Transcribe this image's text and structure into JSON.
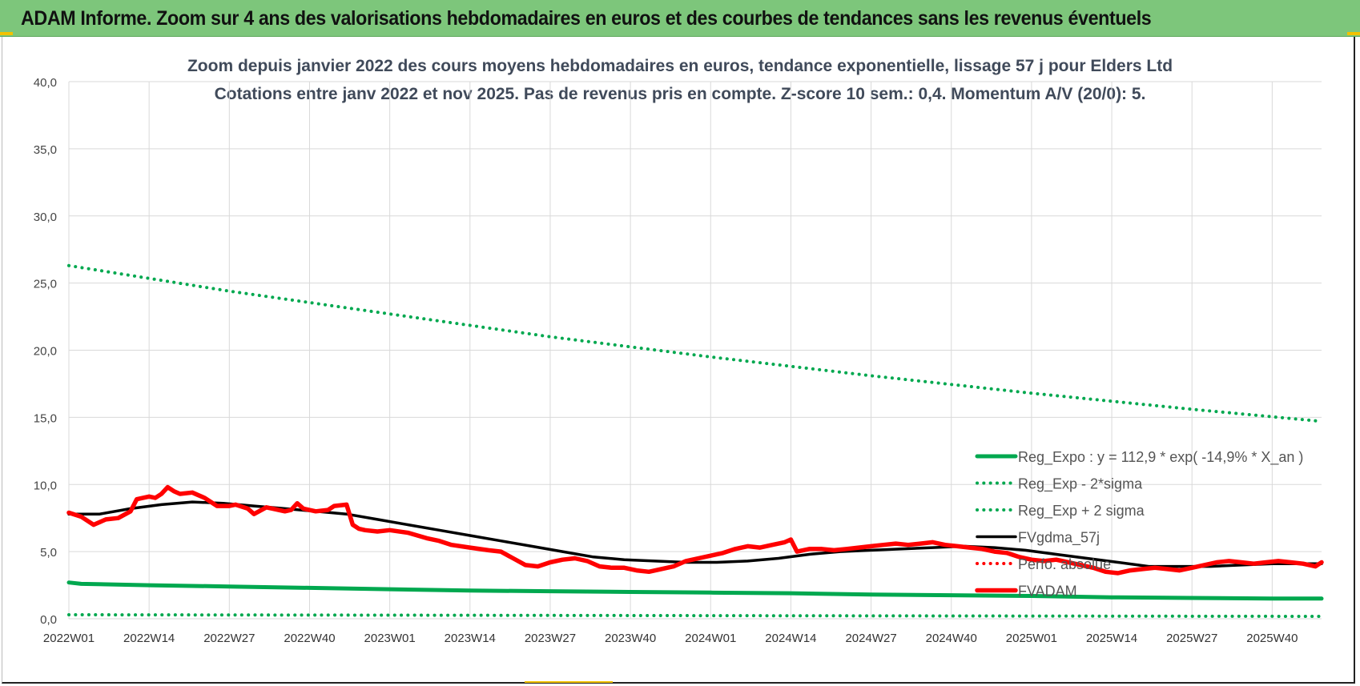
{
  "banner": {
    "title": "ADAM Informe. Zoom sur 4 ans des valorisations hebdomadaires en euros et des courbes de tendances sans les revenus éventuels"
  },
  "colors": {
    "banner_bg": "#7dc67b",
    "reg_expo": "#00a84f",
    "fvgdma": "#000000",
    "fvadam": "#ff0000",
    "perfo": "#ff0000",
    "grid": "#d9d9d9"
  },
  "chart_data": {
    "type": "line",
    "title_line1": "Zoom depuis janvier 2022 des cours moyens hebdomadaires en euros, tendance exponentielle, lissage 57 j pour Elders Ltd",
    "title_line2": "Cotations entre janv 2022 et nov 2025. Pas de revenus pris en compte. Z-score 10 sem.: 0,4. Momentum A/V (20/0): 5.",
    "xlabel": "",
    "ylabel": "",
    "ylim": [
      0,
      40
    ],
    "yticks": [
      "0,0",
      "5,0",
      "10,0",
      "15,0",
      "20,0",
      "25,0",
      "30,0",
      "35,0",
      "40,0"
    ],
    "ytick_values": [
      0,
      5,
      10,
      15,
      20,
      25,
      30,
      35,
      40
    ],
    "xlim": [
      0,
      203
    ],
    "xticks": [
      "2022W01",
      "2022W14",
      "2022W27",
      "2022W40",
      "2023W01",
      "2023W14",
      "2023W27",
      "2023W40",
      "2024W01",
      "2024W14",
      "2024W27",
      "2024W40",
      "2025W01",
      "2025W14",
      "2025W27",
      "2025W40"
    ],
    "xtick_positions": [
      0,
      13,
      26,
      39,
      52,
      65,
      78,
      91,
      104,
      117,
      130,
      143,
      156,
      169,
      182,
      195
    ],
    "grid": true,
    "legend_position": "right",
    "series": [
      {
        "name": "Reg_Expo : y = 112,9 * exp( -14,9% * X_an )",
        "style": "solid-thick",
        "color": "#00a84f",
        "x": [
          0,
          2,
          13,
          26,
          39,
          52,
          65,
          78,
          91,
          104,
          117,
          130,
          143,
          156,
          169,
          182,
          195,
          203
        ],
        "values": [
          2.7,
          2.6,
          2.5,
          2.4,
          2.3,
          2.2,
          2.1,
          2.05,
          2.0,
          1.95,
          1.9,
          1.8,
          1.75,
          1.7,
          1.6,
          1.55,
          1.5,
          1.5
        ]
      },
      {
        "name": "Reg_Exp - 2*sigma",
        "style": "dotted",
        "color": "#00a84f",
        "x": [
          0,
          52,
          104,
          156,
          203
        ],
        "values": [
          0.3,
          0.27,
          0.23,
          0.2,
          0.18
        ]
      },
      {
        "name": "Reg_Exp + 2 sigma",
        "style": "dotted",
        "color": "#00a84f",
        "x": [
          0,
          26,
          52,
          78,
          104,
          130,
          156,
          182,
          203
        ],
        "values": [
          26.3,
          24.4,
          22.7,
          21.0,
          19.5,
          18.1,
          16.8,
          15.6,
          14.7
        ]
      },
      {
        "name": "FVgdma_57j",
        "style": "solid",
        "color": "#000000",
        "x": [
          0,
          5,
          10,
          15,
          20,
          25,
          30,
          35,
          40,
          45,
          50,
          55,
          60,
          65,
          70,
          75,
          80,
          85,
          90,
          95,
          100,
          105,
          110,
          115,
          120,
          125,
          130,
          135,
          140,
          145,
          150,
          155,
          160,
          165,
          170,
          175,
          180,
          185,
          190,
          195,
          200,
          203
        ],
        "values": [
          7.8,
          7.8,
          8.2,
          8.5,
          8.7,
          8.6,
          8.4,
          8.2,
          8.0,
          7.8,
          7.4,
          7.0,
          6.6,
          6.2,
          5.8,
          5.4,
          5.0,
          4.6,
          4.4,
          4.3,
          4.2,
          4.2,
          4.3,
          4.5,
          4.8,
          5.0,
          5.1,
          5.2,
          5.3,
          5.4,
          5.3,
          5.1,
          4.8,
          4.5,
          4.2,
          3.9,
          3.9,
          3.9,
          4.0,
          4.1,
          4.1,
          4.1
        ]
      },
      {
        "name": "Perfo. absolue",
        "style": "dotted",
        "color": "#ff0000",
        "x": [],
        "values": []
      },
      {
        "name": "FVADAM",
        "style": "solid-thick",
        "color": "#ff0000",
        "x": [
          0,
          2,
          4,
          6,
          8,
          10,
          11,
          13,
          14,
          15,
          16,
          17,
          18,
          20,
          21,
          22,
          23,
          24,
          26,
          27,
          29,
          30,
          32,
          33,
          35,
          36,
          37,
          38,
          40,
          42,
          43,
          45,
          46,
          47,
          48,
          50,
          52,
          55,
          58,
          60,
          62,
          65,
          68,
          70,
          72,
          74,
          76,
          78,
          80,
          82,
          84,
          86,
          88,
          90,
          92,
          94,
          96,
          98,
          100,
          102,
          104,
          106,
          108,
          110,
          112,
          114,
          116,
          117,
          118,
          120,
          122,
          124,
          126,
          128,
          130,
          132,
          134,
          136,
          138,
          140,
          142,
          144,
          146,
          148,
          150,
          152,
          154,
          156,
          158,
          160,
          162,
          164,
          166,
          168,
          170,
          172,
          174,
          176,
          178,
          180,
          182,
          184,
          186,
          188,
          190,
          192,
          194,
          196,
          198,
          200,
          202,
          203
        ],
        "values": [
          7.9,
          7.6,
          7.0,
          7.4,
          7.5,
          8.0,
          8.9,
          9.1,
          9.0,
          9.3,
          9.8,
          9.5,
          9.3,
          9.4,
          9.2,
          9.0,
          8.7,
          8.4,
          8.4,
          8.5,
          8.2,
          7.8,
          8.3,
          8.2,
          8.0,
          8.1,
          8.6,
          8.2,
          8.0,
          8.1,
          8.4,
          8.5,
          7.0,
          6.7,
          6.6,
          6.5,
          6.6,
          6.4,
          6.0,
          5.8,
          5.5,
          5.3,
          5.1,
          5.0,
          4.5,
          4.0,
          3.9,
          4.2,
          4.4,
          4.5,
          4.3,
          3.9,
          3.8,
          3.8,
          3.6,
          3.5,
          3.7,
          3.9,
          4.3,
          4.5,
          4.7,
          4.9,
          5.2,
          5.4,
          5.3,
          5.5,
          5.7,
          5.9,
          5.0,
          5.2,
          5.2,
          5.1,
          5.2,
          5.3,
          5.4,
          5.5,
          5.6,
          5.5,
          5.6,
          5.7,
          5.5,
          5.4,
          5.3,
          5.2,
          5.0,
          4.9,
          4.6,
          4.4,
          4.3,
          4.4,
          4.2,
          4.0,
          3.8,
          3.5,
          3.4,
          3.6,
          3.7,
          3.8,
          3.7,
          3.6,
          3.8,
          4.0,
          4.2,
          4.3,
          4.2,
          4.1,
          4.2,
          4.3,
          4.2,
          4.1,
          3.9,
          4.2
        ]
      }
    ]
  }
}
